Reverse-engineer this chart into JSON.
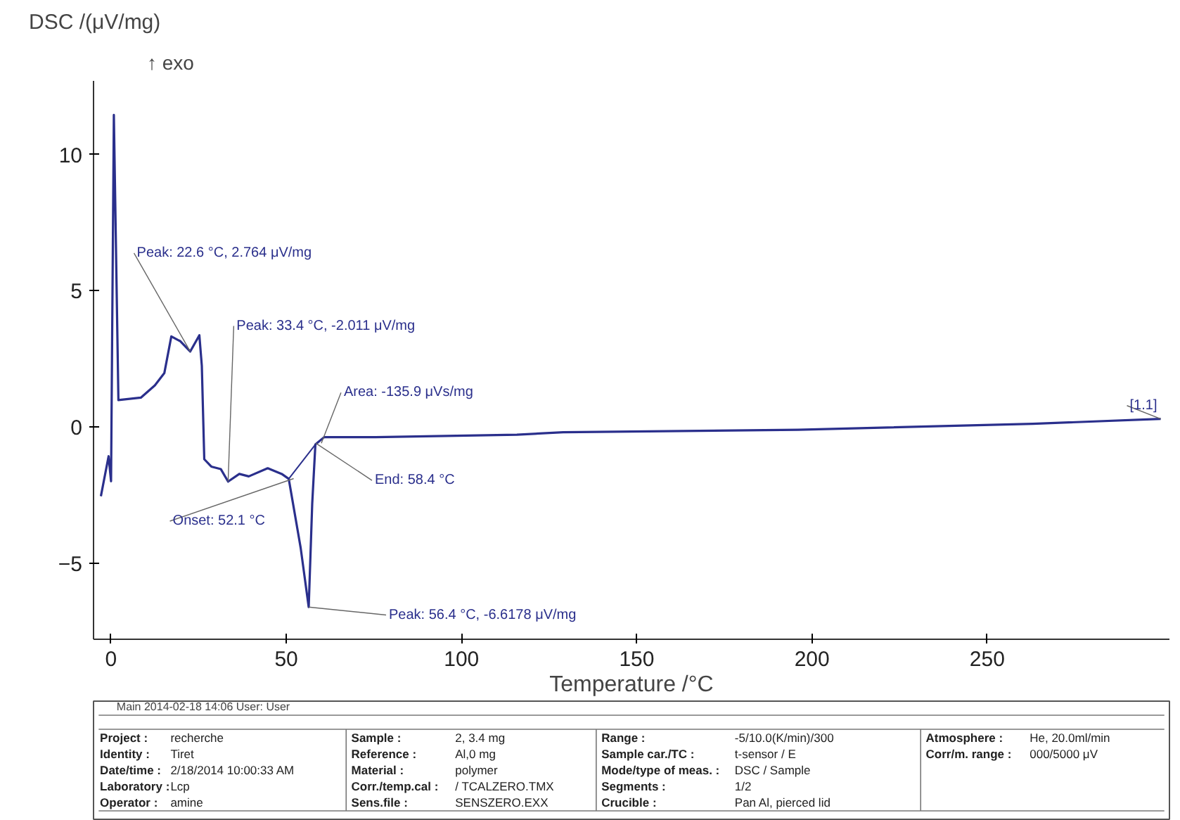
{
  "chart_data": {
    "type": "line",
    "xlabel": "Temperature /°C",
    "ylabel": "DSC /(μV/mg)",
    "xlim": [
      -5,
      302
    ],
    "ylim": [
      -7.8,
      12.7
    ],
    "xticks": [
      0,
      50,
      100,
      150,
      200,
      250
    ],
    "yticks": [
      -5,
      0,
      5,
      10
    ],
    "grid": false,
    "marker": "none",
    "line_style": "solid",
    "series": [
      {
        "color": "#2a2f8c",
        "x": [
          -2.9,
          -0.7,
          0,
          0.8,
          2.1,
          8.5,
          12.5,
          15.2,
          17.2,
          19.8,
          22.6,
          25.2,
          25.9,
          26.6,
          28.6,
          31.3,
          33.4,
          36.6,
          39.3,
          44.7,
          48.7,
          50.7,
          54.1,
          56.4,
          57.4,
          58.3,
          60.8,
          75.5,
          115.8,
          129,
          196,
          263,
          299.5
        ],
        "values": [
          -2.55,
          -1.08,
          -2.0,
          11.45,
          0.98,
          1.07,
          1.52,
          1.97,
          3.32,
          3.14,
          2.764,
          3.36,
          2.24,
          -1.19,
          -1.46,
          -1.55,
          -2.011,
          -1.73,
          -1.82,
          -1.52,
          -1.73,
          -1.91,
          -4.44,
          -6.6178,
          -2.82,
          -0.65,
          -0.38,
          -0.38,
          -0.29,
          -0.2,
          -0.11,
          0.11,
          0.29
        ]
      },
      {
        "color": "#2a2f8c",
        "x": [
          50.7,
          58.3
        ],
        "values": [
          -1.91,
          -0.65
        ]
      }
    ],
    "annotations": [
      {
        "text": "Peak: 22.6 °C, 2.764 μV/mg",
        "x": 22.6,
        "y": 2.764
      },
      {
        "text": "Peak: 33.4 °C, -2.011 μV/mg",
        "x": 33.4,
        "y": -2.011
      },
      {
        "text": "Area: -135.9 μVs/mg",
        "x": 60,
        "y": -0.6
      },
      {
        "text": "End: 58.4 °C",
        "x": 58.4,
        "y": -0.6
      },
      {
        "text": "Onset: 52.1 °C",
        "x": 52.1,
        "y": -1.9
      },
      {
        "text": "Peak: 56.4 °C, -6.6178 μV/mg",
        "x": 56.4,
        "y": -6.6178
      },
      {
        "text": "[1.1]",
        "x": 299.5,
        "y": 0.29
      },
      "↑ exo",
      "Main   2014-02-18 14:06   User: User",
      "Project :",
      "recherche",
      "Sample :",
      "2, 3.4 mg",
      "Range :",
      "-5/10.0(K/min)/300",
      "Atmosphere :",
      "He, 20.0ml/min",
      "Identity :",
      "Tiret",
      "Reference :",
      "Al,0 mg",
      "Sample car./TC :",
      "t-sensor / E",
      "Corr/m. range :",
      "000/5000 μV",
      "Date/time :",
      "2/18/2014 10:00:33 AM",
      "Material :",
      "polymer",
      "Mode/type of meas. :",
      "DSC / Sample",
      "Laboratory :",
      "Lcp",
      "Corr./temp.cal :",
      "/ TCALZERO.TMX",
      "Segments :",
      "1/2",
      "Operator :",
      "amine",
      "Sens.file :",
      "SENSZERO.EXX",
      "Crucible :",
      "Pan Al, pierced lid"
    ]
  }
}
